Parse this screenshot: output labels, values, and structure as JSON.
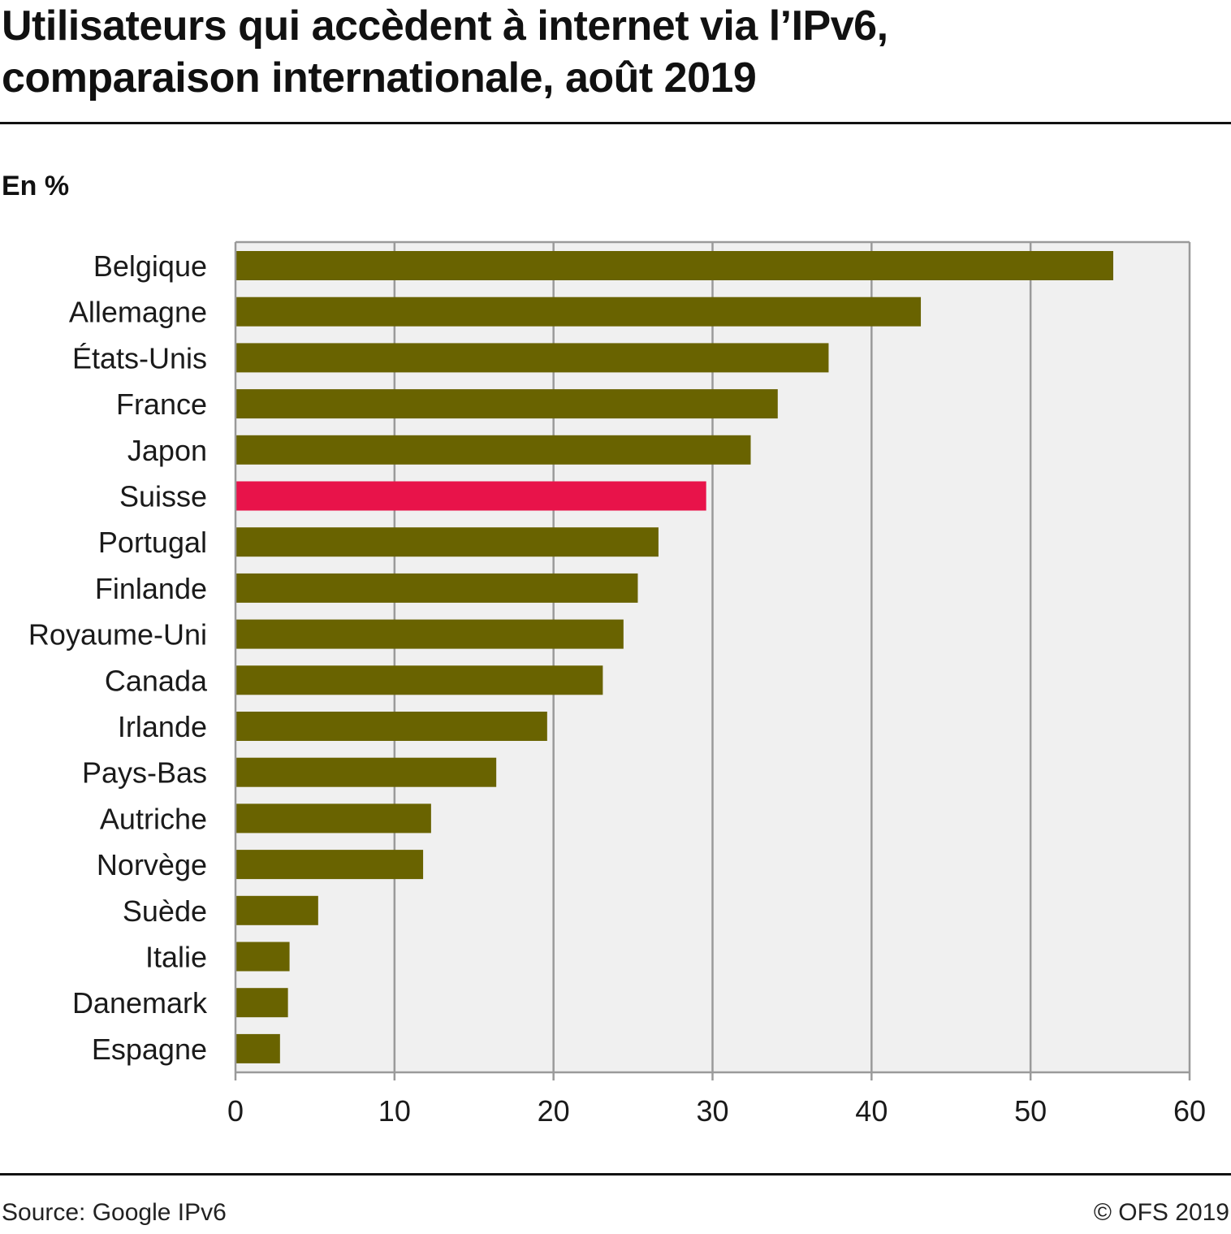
{
  "title_line1": "Utilisateurs qui accèdent à internet via l’IPv6,",
  "title_line2": "comparaison internationale, août 2019",
  "unit_label": "En %",
  "source": "Source: Google IPv6",
  "copyright": "© OFS 2019",
  "chart_data": {
    "type": "bar",
    "orientation": "horizontal",
    "categories": [
      "Belgique",
      "Allemagne",
      "États-Unis",
      "France",
      "Japon",
      "Suisse",
      "Portugal",
      "Finlande",
      "Royaume-Uni",
      "Canada",
      "Irlande",
      "Pays-Bas",
      "Autriche",
      "Norvège",
      "Suède",
      "Italie",
      "Danemark",
      "Espagne"
    ],
    "values": [
      55.2,
      43.1,
      37.3,
      34.1,
      32.4,
      29.6,
      26.6,
      25.3,
      24.4,
      23.1,
      19.6,
      16.4,
      12.3,
      11.8,
      5.2,
      3.4,
      3.3,
      2.8
    ],
    "highlight": "Suisse",
    "colors": {
      "bar": "#696300",
      "highlight": "#e8134a",
      "plot_bg": "#f0f0f0",
      "grid": "#9a9a9a"
    },
    "xlim": [
      0,
      60
    ],
    "xticks": [
      0,
      10,
      20,
      30,
      40,
      50,
      60
    ],
    "grid": true
  }
}
